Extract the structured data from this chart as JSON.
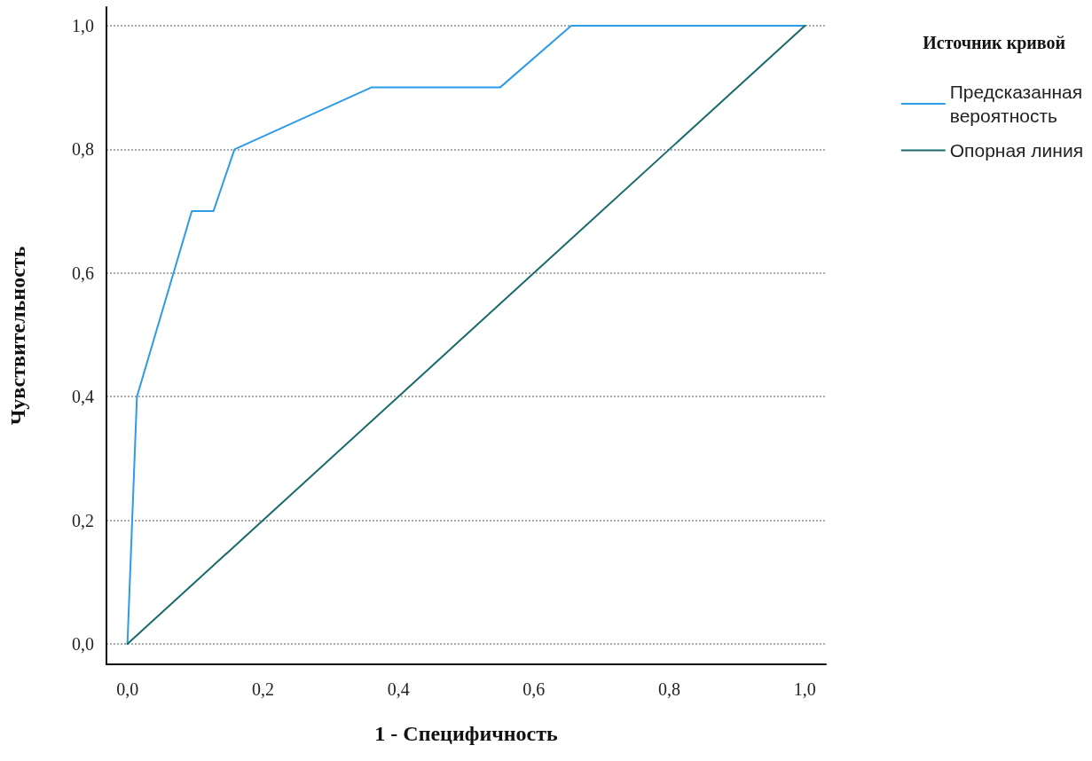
{
  "chart_data": {
    "type": "line",
    "xlabel": "1 - Специфичность",
    "ylabel": "Чувствительность",
    "legend_title": "Источник кривой",
    "legend": "top right",
    "grid": "y",
    "marker": "none",
    "line_style": "solid",
    "xlim": [
      -0.031,
      1.031
    ],
    "ylim": [
      -0.033,
      1.03
    ],
    "xticks": [
      {
        "value": 0,
        "label": "0,0"
      },
      {
        "value": 0.2,
        "label": "0,2"
      },
      {
        "value": 0.4,
        "label": "0,4"
      },
      {
        "value": 0.6,
        "label": "0,6"
      },
      {
        "value": 0.8,
        "label": "0,8"
      },
      {
        "value": 1,
        "label": "1,0"
      }
    ],
    "yticks": [
      {
        "value": 0,
        "label": "0,0"
      },
      {
        "value": 0.2,
        "label": "0,2"
      },
      {
        "value": 0.4,
        "label": "0,4"
      },
      {
        "value": 0.6,
        "label": "0,6"
      },
      {
        "value": 0.8,
        "label": "0,8"
      },
      {
        "value": 1,
        "label": "1,0"
      }
    ],
    "series": [
      {
        "name": "Предсказанная вероятность",
        "color": "#2e9be8",
        "x": [
          0,
          0.014,
          0.095,
          0.127,
          0.158,
          0.36,
          0.55,
          0.655,
          1
        ],
        "values": [
          0,
          0.4,
          0.7,
          0.7,
          0.8,
          0.9,
          0.9,
          1,
          1
        ]
      },
      {
        "name": "Опорная линия",
        "color": "#1a6b6b",
        "x": [
          0,
          1
        ],
        "values": [
          0,
          1
        ]
      }
    ]
  }
}
